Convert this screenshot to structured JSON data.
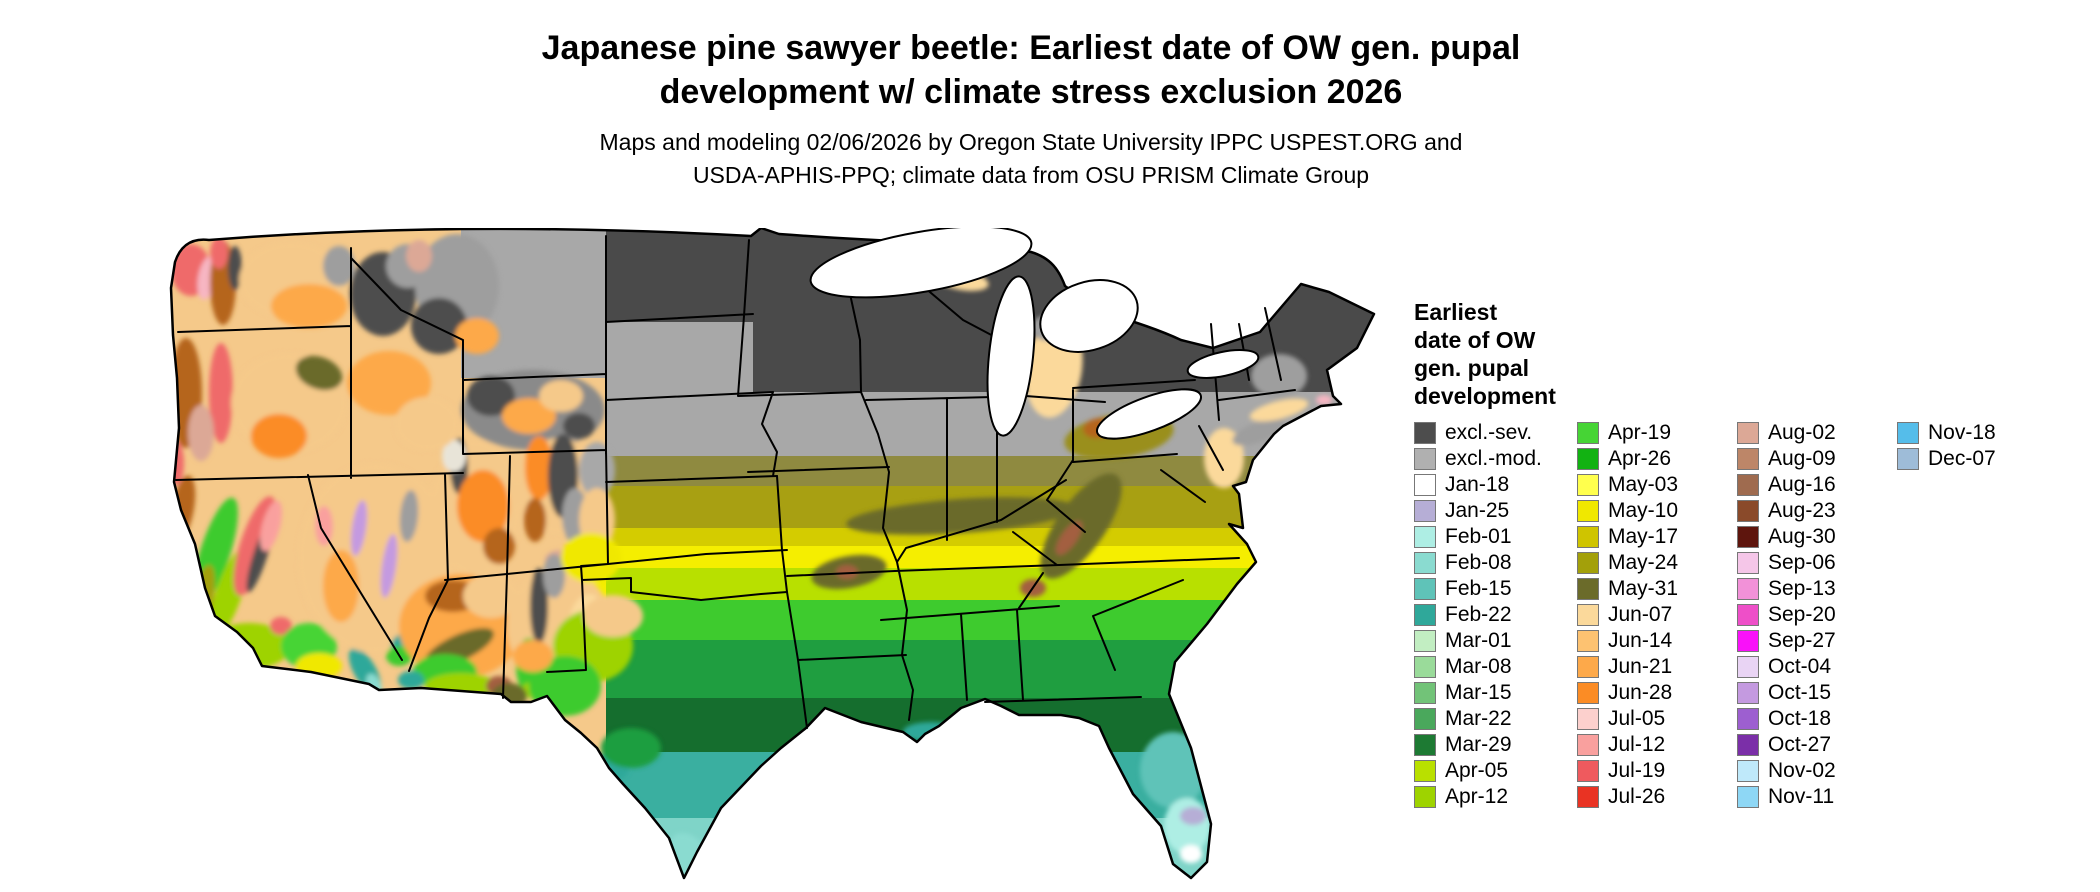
{
  "header": {
    "title_line1": "Japanese pine sawyer beetle: Earliest date of OW gen. pupal",
    "title_line2": "development w/ climate stress exclusion 2026",
    "subtitle_line1": "Maps and modeling 02/06/2026 by Oregon State University IPPC USPEST.ORG and",
    "subtitle_line2": "USDA-APHIS-PPQ; climate data from OSU PRISM Climate Group"
  },
  "legend": {
    "title_lines": [
      "Earliest",
      "date of OW",
      "gen. pupal",
      "development"
    ],
    "columns": [
      [
        {
          "label": "excl.-sev.",
          "color": "#4d4d4d"
        },
        {
          "label": "excl.-mod.",
          "color": "#b0b0b0"
        },
        {
          "label": "Jan-18",
          "color": "#ffffff"
        },
        {
          "label": "Jan-25",
          "color": "#b6aed6"
        },
        {
          "label": "Feb-01",
          "color": "#aeeee4"
        },
        {
          "label": "Feb-08",
          "color": "#8adbd0"
        },
        {
          "label": "Feb-15",
          "color": "#5fc3b8"
        },
        {
          "label": "Feb-22",
          "color": "#2fa89a"
        },
        {
          "label": "Mar-01",
          "color": "#c2eec2"
        },
        {
          "label": "Mar-08",
          "color": "#9adb9a"
        },
        {
          "label": "Mar-15",
          "color": "#72c378"
        },
        {
          "label": "Mar-22",
          "color": "#4aa85c"
        },
        {
          "label": "Mar-29",
          "color": "#1d7a33"
        },
        {
          "label": "Apr-05",
          "color": "#b9e000"
        },
        {
          "label": "Apr-12",
          "color": "#9ed300"
        }
      ],
      [
        {
          "label": "Apr-19",
          "color": "#46d435"
        },
        {
          "label": "Apr-26",
          "color": "#12b212"
        },
        {
          "label": "May-03",
          "color": "#ffff4d"
        },
        {
          "label": "May-10",
          "color": "#f0e800"
        },
        {
          "label": "May-17",
          "color": "#cfc400"
        },
        {
          "label": "May-24",
          "color": "#a3a00a"
        },
        {
          "label": "May-31",
          "color": "#6b6b2a"
        },
        {
          "label": "Jun-07",
          "color": "#fbd99b"
        },
        {
          "label": "Jun-14",
          "color": "#fdc271"
        },
        {
          "label": "Jun-21",
          "color": "#fda94a"
        },
        {
          "label": "Jun-28",
          "color": "#fb8c25"
        },
        {
          "label": "Jul-05",
          "color": "#fcd0cd"
        },
        {
          "label": "Jul-12",
          "color": "#f9a09e"
        },
        {
          "label": "Jul-19",
          "color": "#ef5a5e"
        },
        {
          "label": "Jul-26",
          "color": "#e93323"
        }
      ],
      [
        {
          "label": "Aug-02",
          "color": "#dca896"
        },
        {
          "label": "Aug-09",
          "color": "#bd8668"
        },
        {
          "label": "Aug-16",
          "color": "#9f6b4f"
        },
        {
          "label": "Aug-23",
          "color": "#8a4a2a"
        },
        {
          "label": "Aug-30",
          "color": "#5e150d"
        },
        {
          "label": "Sep-06",
          "color": "#f5c6e8"
        },
        {
          "label": "Sep-13",
          "color": "#f291d8"
        },
        {
          "label": "Sep-20",
          "color": "#ee4fc8"
        },
        {
          "label": "Sep-27",
          "color": "#f911f9"
        },
        {
          "label": "Oct-04",
          "color": "#e9d4f4"
        },
        {
          "label": "Oct-15",
          "color": "#c49ae0"
        },
        {
          "label": "Oct-18",
          "color": "#9d5fd0"
        },
        {
          "label": "Oct-27",
          "color": "#7b2fa8"
        },
        {
          "label": "Nov-02",
          "color": "#bfe9fa"
        },
        {
          "label": "Nov-11",
          "color": "#8ed7f5"
        }
      ],
      [
        {
          "label": "Nov-18",
          "color": "#55bdea"
        },
        {
          "label": "Dec-07",
          "color": "#9ebcd8"
        }
      ]
    ]
  }
}
